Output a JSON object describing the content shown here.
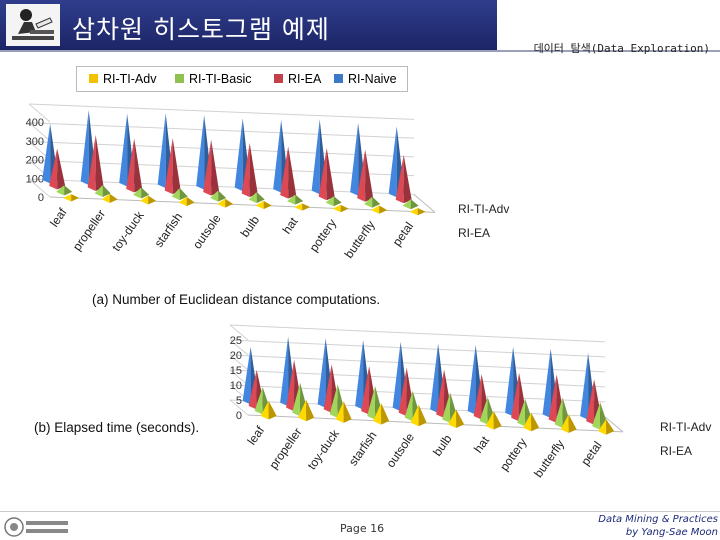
{
  "header": {
    "title": "삼차원 히스토그램 예제",
    "subtitle": "데이터 탐색(Data Exploration)"
  },
  "legend": [
    {
      "name": "RI-TI-Adv",
      "color": "#f2c200"
    },
    {
      "name": "RI-TI-Basic",
      "color": "#8fc050"
    },
    {
      "name": "RI-EA",
      "color": "#c4404a"
    },
    {
      "name": "RI-Naive",
      "color": "#3c78c8"
    }
  ],
  "footer": {
    "page": "Page 16",
    "credit_line1": "Data Mining & Practices",
    "credit_line2": "by Yang-Sae Moon"
  },
  "chart_data": [
    {
      "type": "bar",
      "shape": "3d-pyramid",
      "caption": "(a) Number of Euclidean distance computations.",
      "categories": [
        "leaf",
        "propeller",
        "toy-duck",
        "starfish",
        "outsole",
        "bulb",
        "hat",
        "pottery",
        "butterfly",
        "petal"
      ],
      "yticks": [
        "0",
        "100",
        "200",
        "300",
        "400"
      ],
      "ylim": [
        0,
        400
      ],
      "depth_labels": [
        "RI-TI-Adv",
        "RI-EA"
      ],
      "series": [
        {
          "name": "RI-TI-Adv",
          "values": [
            20,
            30,
            28,
            30,
            28,
            25,
            20,
            20,
            25,
            20
          ]
        },
        {
          "name": "RI-TI-Basic",
          "values": [
            35,
            45,
            40,
            45,
            40,
            40,
            35,
            35,
            40,
            35
          ]
        },
        {
          "name": "RI-EA",
          "values": [
            200,
            280,
            270,
            280,
            280,
            270,
            260,
            260,
            260,
            240
          ]
        },
        {
          "name": "RI-Naive",
          "values": [
            300,
            380,
            370,
            380,
            380,
            370,
            370,
            380,
            370,
            360
          ]
        }
      ]
    },
    {
      "type": "bar",
      "shape": "3d-pyramid",
      "caption": "(b) Elapsed time (seconds).",
      "categories": [
        "leaf",
        "propeller",
        "toy-duck",
        "starfish",
        "outsole",
        "bulb",
        "hat",
        "pottery",
        "butterfly",
        "petal"
      ],
      "yticks": [
        "0",
        "5",
        "10",
        "15",
        "20",
        "25"
      ],
      "ylim": [
        0,
        25
      ],
      "depth_labels": [
        "RI-TI-Adv",
        "RI-EA"
      ],
      "series": [
        {
          "name": "RI-TI-Adv",
          "values": [
            5,
            6,
            6,
            6,
            6,
            5,
            5,
            5,
            5,
            4
          ]
        },
        {
          "name": "RI-TI-Basic",
          "values": [
            8,
            10,
            10,
            10,
            9,
            9,
            8,
            8,
            9,
            8
          ]
        },
        {
          "name": "RI-EA",
          "values": [
            12,
            16,
            15,
            15,
            15,
            15,
            14,
            15,
            15,
            14
          ]
        },
        {
          "name": "RI-Naive",
          "values": [
            18,
            22,
            22,
            22,
            22,
            22,
            22,
            22,
            22,
            21
          ]
        }
      ]
    }
  ]
}
